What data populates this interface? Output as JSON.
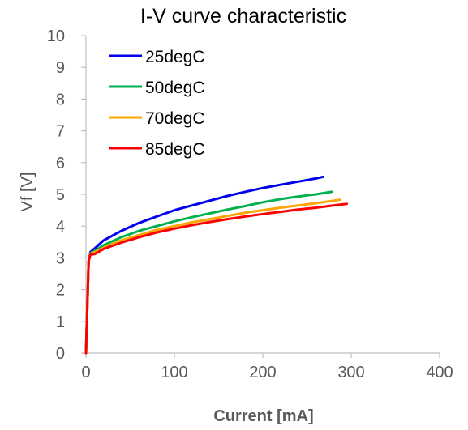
{
  "chart_data": {
    "type": "line",
    "title": "I-V curve characteristic",
    "xlabel": "Current [mA]",
    "ylabel": "Vf [V]",
    "xlim": [
      0,
      400
    ],
    "ylim": [
      0,
      10
    ],
    "x_ticks": [
      0,
      100,
      200,
      300,
      400
    ],
    "y_ticks": [
      0,
      1,
      2,
      3,
      4,
      5,
      6,
      7,
      8,
      9,
      10
    ],
    "grid": false,
    "legend_position": "top-left",
    "series": [
      {
        "name": "25degC",
        "color": "#0000ee",
        "x": [
          0,
          3,
          5,
          10,
          20,
          40,
          60,
          80,
          100,
          120,
          140,
          160,
          180,
          200,
          220,
          240,
          260,
          268
        ],
        "y": [
          0,
          2.9,
          3.18,
          3.3,
          3.55,
          3.85,
          4.1,
          4.3,
          4.5,
          4.65,
          4.8,
          4.95,
          5.08,
          5.2,
          5.3,
          5.4,
          5.5,
          5.55
        ]
      },
      {
        "name": "50degC",
        "color": "#00b050",
        "x": [
          0,
          3,
          5,
          10,
          20,
          40,
          60,
          80,
          100,
          120,
          140,
          160,
          180,
          200,
          220,
          240,
          260,
          278
        ],
        "y": [
          0,
          2.9,
          3.15,
          3.22,
          3.4,
          3.65,
          3.85,
          4.0,
          4.15,
          4.28,
          4.4,
          4.52,
          4.63,
          4.75,
          4.85,
          4.93,
          5.0,
          5.08
        ]
      },
      {
        "name": "70degC",
        "color": "#ffa500",
        "x": [
          0,
          3,
          5,
          10,
          20,
          40,
          60,
          80,
          100,
          120,
          140,
          160,
          180,
          200,
          220,
          240,
          260,
          280,
          287
        ],
        "y": [
          0,
          2.9,
          3.12,
          3.18,
          3.32,
          3.55,
          3.72,
          3.88,
          4.0,
          4.12,
          4.22,
          4.32,
          4.42,
          4.5,
          4.58,
          4.65,
          4.72,
          4.8,
          4.83
        ]
      },
      {
        "name": "85degC",
        "color": "#ff0000",
        "x": [
          0,
          3,
          5,
          10,
          20,
          40,
          60,
          80,
          100,
          120,
          140,
          160,
          180,
          200,
          220,
          240,
          260,
          280,
          295
        ],
        "y": [
          0,
          2.9,
          3.1,
          3.12,
          3.28,
          3.48,
          3.65,
          3.8,
          3.92,
          4.03,
          4.13,
          4.22,
          4.3,
          4.38,
          4.45,
          4.52,
          4.58,
          4.65,
          4.7
        ]
      }
    ]
  }
}
